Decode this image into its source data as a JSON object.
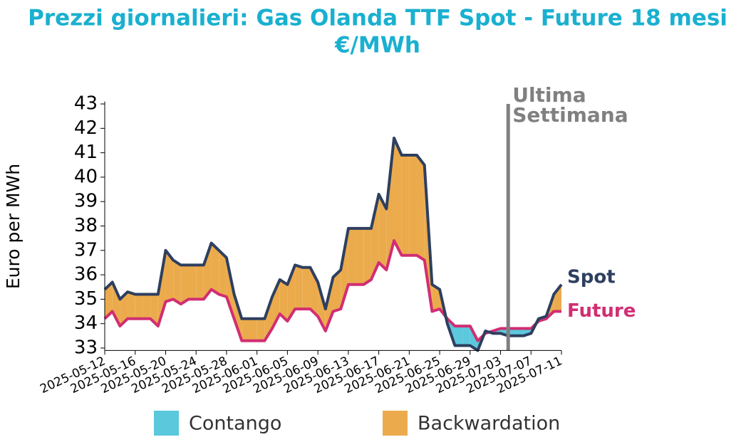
{
  "chart_data": {
    "type": "line",
    "title": [
      "Prezzi giornalieri: Gas Olanda TTF Spot - Future 18 mesi",
      "€/MWh"
    ],
    "ylabel": "Euro per MWh",
    "x": [
      "2025-05-12",
      "2025-05-13",
      "2025-05-14",
      "2025-05-15",
      "2025-05-16",
      "2025-05-17",
      "2025-05-18",
      "2025-05-19",
      "2025-05-20",
      "2025-05-21",
      "2025-05-22",
      "2025-05-23",
      "2025-05-24",
      "2025-05-25",
      "2025-05-26",
      "2025-05-27",
      "2025-05-28",
      "2025-05-29",
      "2025-05-30",
      "2025-05-31",
      "2025-06-01",
      "2025-06-02",
      "2025-06-03",
      "2025-06-04",
      "2025-06-05",
      "2025-06-06",
      "2025-06-07",
      "2025-06-08",
      "2025-06-09",
      "2025-06-10",
      "2025-06-11",
      "2025-06-12",
      "2025-06-13",
      "2025-06-14",
      "2025-06-15",
      "2025-06-16",
      "2025-06-17",
      "2025-06-18",
      "2025-06-19",
      "2025-06-20",
      "2025-06-21",
      "2025-06-22",
      "2025-06-23",
      "2025-06-24",
      "2025-06-25",
      "2025-06-26",
      "2025-06-27",
      "2025-06-28",
      "2025-06-29",
      "2025-06-30",
      "2025-07-01",
      "2025-07-02",
      "2025-07-03",
      "2025-07-04",
      "2025-07-05",
      "2025-07-06",
      "2025-07-07",
      "2025-07-08",
      "2025-07-09",
      "2025-07-10",
      "2025-07-11"
    ],
    "series": [
      {
        "name": "Spot",
        "color": "#2e3f5f",
        "values": [
          35.4,
          35.7,
          35.0,
          35.3,
          35.2,
          35.2,
          35.2,
          35.2,
          37.0,
          36.6,
          36.4,
          36.4,
          36.4,
          36.4,
          37.3,
          37.0,
          36.7,
          35.2,
          34.2,
          34.2,
          34.2,
          34.2,
          35.1,
          35.8,
          35.6,
          36.4,
          36.3,
          36.3,
          35.7,
          34.6,
          35.9,
          36.2,
          37.9,
          37.9,
          37.9,
          37.9,
          39.3,
          38.7,
          41.6,
          40.9,
          40.9,
          40.9,
          40.5,
          35.6,
          35.4,
          34.0,
          33.1,
          33.1,
          33.1,
          32.9,
          33.7,
          33.6,
          33.6,
          33.5,
          33.5,
          33.5,
          33.6,
          34.2,
          34.3,
          35.2,
          35.6
        ]
      },
      {
        "name": "Future",
        "color": "#d12e72",
        "values": [
          34.2,
          34.5,
          33.9,
          34.2,
          34.2,
          34.2,
          34.2,
          33.9,
          34.9,
          35.0,
          34.8,
          35.0,
          35.0,
          35.0,
          35.4,
          35.2,
          35.1,
          34.2,
          33.3,
          33.3,
          33.3,
          33.3,
          33.8,
          34.4,
          34.1,
          34.6,
          34.6,
          34.6,
          34.3,
          33.7,
          34.5,
          34.6,
          35.6,
          35.6,
          35.6,
          35.8,
          36.5,
          36.2,
          37.4,
          36.8,
          36.8,
          36.8,
          36.6,
          34.5,
          34.6,
          34.2,
          33.9,
          33.9,
          33.9,
          33.3,
          33.6,
          33.7,
          33.8,
          33.8,
          33.8,
          33.8,
          33.8,
          34.1,
          34.2,
          34.5,
          34.5
        ]
      }
    ],
    "fill_legend": [
      {
        "name": "Contango",
        "color": "#5bc8dc"
      },
      {
        "name": "Backwardation",
        "color": "#ebab4c"
      }
    ],
    "annotation": {
      "x": "2025-07-04",
      "text": [
        "Ultima",
        "Settimana"
      ],
      "color": "#808080"
    },
    "xlim": [
      "2025-05-12",
      "2025-07-11"
    ],
    "xticks": [
      "2025-05-12",
      "2025-05-16",
      "2025-05-20",
      "2025-05-24",
      "2025-05-28",
      "2025-06-01",
      "2025-06-05",
      "2025-06-09",
      "2025-06-13",
      "2025-06-17",
      "2025-06-21",
      "2025-06-25",
      "2025-06-29",
      "2025-07-03",
      "2025-07-07",
      "2025-07-11"
    ],
    "ylim": [
      32.9,
      43.1
    ],
    "yticks": [
      33,
      34,
      35,
      36,
      37,
      38,
      39,
      40,
      41,
      42,
      43
    ],
    "title_color": "#1ab0d0"
  }
}
